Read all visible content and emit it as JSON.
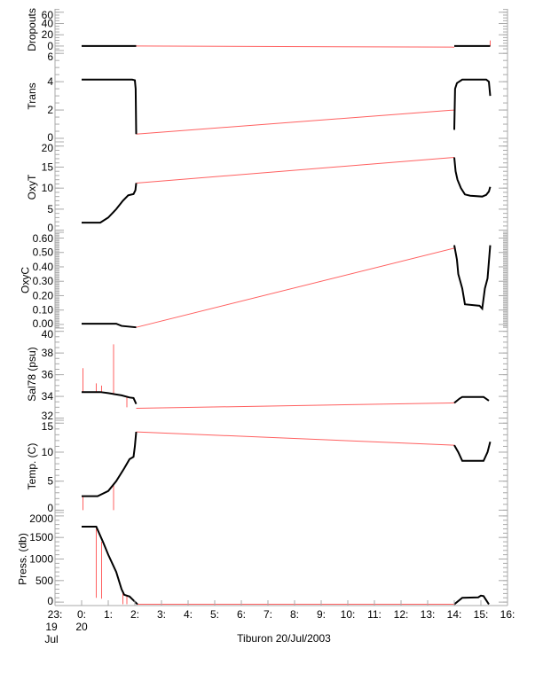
{
  "chart_data": {
    "type": "line",
    "xlabel": "Tiburon 20/Jul/2003",
    "xlim": [
      -1,
      16
    ],
    "xticks": [
      {
        "v": -1,
        "lines": [
          "23:",
          "19",
          "Jul"
        ]
      },
      {
        "v": 0,
        "lines": [
          "0:",
          "20"
        ]
      },
      {
        "v": 1,
        "lines": [
          "1:"
        ]
      },
      {
        "v": 2,
        "lines": [
          "2:"
        ]
      },
      {
        "v": 3,
        "lines": [
          "3:"
        ]
      },
      {
        "v": 4,
        "lines": [
          "4:"
        ]
      },
      {
        "v": 5,
        "lines": [
          "5:"
        ]
      },
      {
        "v": 6,
        "lines": [
          "6:"
        ]
      },
      {
        "v": 7,
        "lines": [
          "7:"
        ]
      },
      {
        "v": 8,
        "lines": [
          "8:"
        ]
      },
      {
        "v": 9,
        "lines": [
          "9:"
        ]
      },
      {
        "v": 10,
        "lines": [
          "10:"
        ]
      },
      {
        "v": 11,
        "lines": [
          "11:"
        ]
      },
      {
        "v": 12,
        "lines": [
          "12:"
        ]
      },
      {
        "v": 13,
        "lines": [
          "13:"
        ]
      },
      {
        "v": 14,
        "lines": [
          "14:"
        ]
      },
      {
        "v": 15,
        "lines": [
          "15:"
        ]
      },
      {
        "v": 16,
        "lines": [
          "16:"
        ]
      }
    ],
    "colors": {
      "measured": "#000000",
      "gap": "#ff6060",
      "axis": "#aaaaaa"
    },
    "panels": [
      {
        "ylabel": "Dropouts",
        "ylim": [
          -8,
          66
        ],
        "yticks": [
          "0",
          "20",
          "40",
          "60"
        ],
        "tickvals": [
          0,
          20,
          40,
          60
        ],
        "minor": 5,
        "black": [
          [
            [
              0,
              0
            ],
            [
              2.05,
              0
            ]
          ],
          [
            [
              14.0,
              0
            ],
            [
              15.35,
              0
            ]
          ]
        ],
        "red": [
          [
            [
              2.05,
              0
            ],
            [
              14.0,
              -2
            ]
          ],
          [
            [
              15.35,
              0
            ],
            [
              15.35,
              10
            ]
          ]
        ]
      },
      {
        "ylabel": "Trans",
        "ylim": [
          -0.25,
          6.2
        ],
        "yticks": [
          "0",
          "2",
          "4",
          "6"
        ],
        "tickvals": [
          0,
          2,
          4,
          6
        ],
        "minor": 0.5,
        "black": [
          [
            [
              0,
              4.15
            ],
            [
              1.9,
              4.15
            ],
            [
              2.0,
              4.1
            ],
            [
              2.03,
              3.5
            ],
            [
              2.05,
              0.3
            ]
          ],
          [
            [
              14.0,
              0.6
            ],
            [
              14.03,
              3.5
            ],
            [
              14.1,
              3.9
            ],
            [
              14.3,
              4.15
            ],
            [
              15.2,
              4.15
            ],
            [
              15.3,
              4.0
            ],
            [
              15.35,
              3.0
            ]
          ]
        ],
        "red": [
          [
            [
              2.05,
              0.3
            ],
            [
              14.0,
              2.0
            ]
          ]
        ]
      },
      {
        "ylabel": "OxyT",
        "ylim": [
          -0.5,
          21
        ],
        "yticks": [
          "0",
          "5",
          "10",
          "15",
          "20"
        ],
        "tickvals": [
          0,
          5,
          10,
          15,
          20
        ],
        "minor": 1,
        "black": [
          [
            [
              0,
              1.8
            ],
            [
              0.7,
              1.8
            ],
            [
              1.0,
              3
            ],
            [
              1.3,
              5
            ],
            [
              1.55,
              7
            ],
            [
              1.75,
              8.3
            ],
            [
              1.95,
              8.6
            ],
            [
              2.02,
              9.5
            ],
            [
              2.05,
              11.2
            ]
          ],
          [
            [
              14.0,
              17.3
            ],
            [
              14.05,
              14
            ],
            [
              14.12,
              12
            ],
            [
              14.25,
              10
            ],
            [
              14.4,
              8.5
            ],
            [
              14.6,
              8.2
            ],
            [
              15.05,
              8.0
            ],
            [
              15.2,
              8.4
            ],
            [
              15.3,
              9.2
            ],
            [
              15.35,
              10.3
            ]
          ]
        ],
        "red": [
          [
            [
              2.05,
              11.2
            ],
            [
              14.0,
              17.3
            ]
          ]
        ]
      },
      {
        "ylabel": "OxyC",
        "ylim": [
          -0.025,
          0.64
        ],
        "yticks": [
          "0.00",
          "0.10",
          "0.20",
          "0.30",
          "0.40",
          "0.50",
          "0.60"
        ],
        "tickvals": [
          0,
          0.1,
          0.2,
          0.3,
          0.4,
          0.5,
          0.6
        ],
        "minor": 0.01,
        "black": [
          [
            [
              0,
              0.005
            ],
            [
              1.3,
              0.005
            ],
            [
              1.5,
              -0.01
            ],
            [
              2.05,
              -0.02
            ]
          ],
          [
            [
              14.0,
              0.55
            ],
            [
              14.1,
              0.45
            ],
            [
              14.15,
              0.35
            ],
            [
              14.3,
              0.25
            ],
            [
              14.4,
              0.14
            ],
            [
              14.95,
              0.13
            ],
            [
              15.05,
              0.11
            ],
            [
              15.15,
              0.25
            ],
            [
              15.25,
              0.32
            ],
            [
              15.35,
              0.55
            ]
          ]
        ],
        "red": [
          [
            [
              2.05,
              -0.02
            ],
            [
              14.0,
              0.53
            ]
          ]
        ]
      },
      {
        "ylabel": "Sal78 (psu)",
        "ylim": [
          31.8,
          40.3
        ],
        "yticks": [
          "32",
          "34",
          "36",
          "38",
          "40"
        ],
        "tickvals": [
          32,
          34,
          36,
          38,
          40
        ],
        "minor": 0.5,
        "black": [
          [
            [
              0,
              34.4
            ],
            [
              0.7,
              34.4
            ],
            [
              1.0,
              34.3
            ],
            [
              1.5,
              34.1
            ],
            [
              1.8,
              33.9
            ],
            [
              1.95,
              33.85
            ],
            [
              2.05,
              33.3
            ]
          ],
          [
            [
              14.0,
              33.4
            ],
            [
              14.2,
              33.8
            ],
            [
              14.3,
              33.95
            ],
            [
              15.1,
              33.95
            ],
            [
              15.3,
              33.6
            ]
          ]
        ],
        "red": [
          [
            [
              2.05,
              32.9
            ],
            [
              14.0,
              33.4
            ]
          ],
          [
            [
              0.05,
              34.4
            ],
            [
              0.05,
              36.6
            ]
          ],
          [
            [
              0.55,
              34.4
            ],
            [
              0.55,
              35.2
            ]
          ],
          [
            [
              0.75,
              34.4
            ],
            [
              0.75,
              35.0
            ]
          ],
          [
            [
              1.2,
              34.2
            ],
            [
              1.2,
              38.8
            ]
          ],
          [
            [
              1.7,
              33.9
            ],
            [
              1.7,
              33.0
            ]
          ]
        ]
      },
      {
        "ylabel": "Temp. (C)",
        "ylim": [
          -0.4,
          15.5
        ],
        "yticks": [
          "0",
          "5",
          "10",
          "15"
        ],
        "tickvals": [
          0,
          5,
          10,
          15
        ],
        "minor": 1,
        "black": [
          [
            [
              0,
              2.4
            ],
            [
              0.6,
              2.4
            ],
            [
              1.0,
              3.3
            ],
            [
              1.3,
              5
            ],
            [
              1.6,
              7.2
            ],
            [
              1.8,
              8.8
            ],
            [
              1.95,
              9.2
            ],
            [
              2.0,
              11
            ],
            [
              2.05,
              13.5
            ]
          ],
          [
            [
              14.0,
              11.2
            ],
            [
              14.15,
              10
            ],
            [
              14.3,
              8.5
            ],
            [
              15.1,
              8.5
            ],
            [
              15.25,
              10
            ],
            [
              15.35,
              11.8
            ]
          ]
        ],
        "red": [
          [
            [
              2.05,
              13.5
            ],
            [
              14.0,
              11.2
            ]
          ],
          [
            [
              0.05,
              2.4
            ],
            [
              0.05,
              0
            ]
          ],
          [
            [
              1.2,
              4.5
            ],
            [
              1.2,
              0
            ]
          ]
        ]
      },
      {
        "ylabel": "Press. (db)",
        "ylim": [
          -80,
          2080
        ],
        "yticks": [
          "0",
          "500",
          "1000",
          "1500",
          "2000"
        ],
        "tickvals": [
          0,
          500,
          1000,
          1500,
          2000
        ],
        "minor": 100,
        "black": [
          [
            [
              0,
              1750
            ],
            [
              0.55,
              1750
            ],
            [
              0.8,
              1400
            ],
            [
              1.0,
              1100
            ],
            [
              1.3,
              700
            ],
            [
              1.5,
              300
            ],
            [
              1.6,
              170
            ],
            [
              1.8,
              130
            ],
            [
              2.1,
              -50
            ]
          ],
          [
            [
              14.0,
              -50
            ],
            [
              14.3,
              100
            ],
            [
              14.9,
              110
            ],
            [
              15.0,
              150
            ],
            [
              15.1,
              140
            ],
            [
              15.3,
              -50
            ]
          ]
        ],
        "red": [
          [
            [
              2.1,
              -50
            ],
            [
              14.0,
              -50
            ]
          ],
          [
            [
              0.55,
              1700
            ],
            [
              0.55,
              100
            ]
          ],
          [
            [
              0.75,
              1400
            ],
            [
              0.75,
              80
            ]
          ],
          [
            [
              1.55,
              250
            ],
            [
              1.55,
              -50
            ]
          ],
          [
            [
              1.7,
              150
            ],
            [
              1.7,
              -50
            ]
          ]
        ]
      }
    ]
  }
}
